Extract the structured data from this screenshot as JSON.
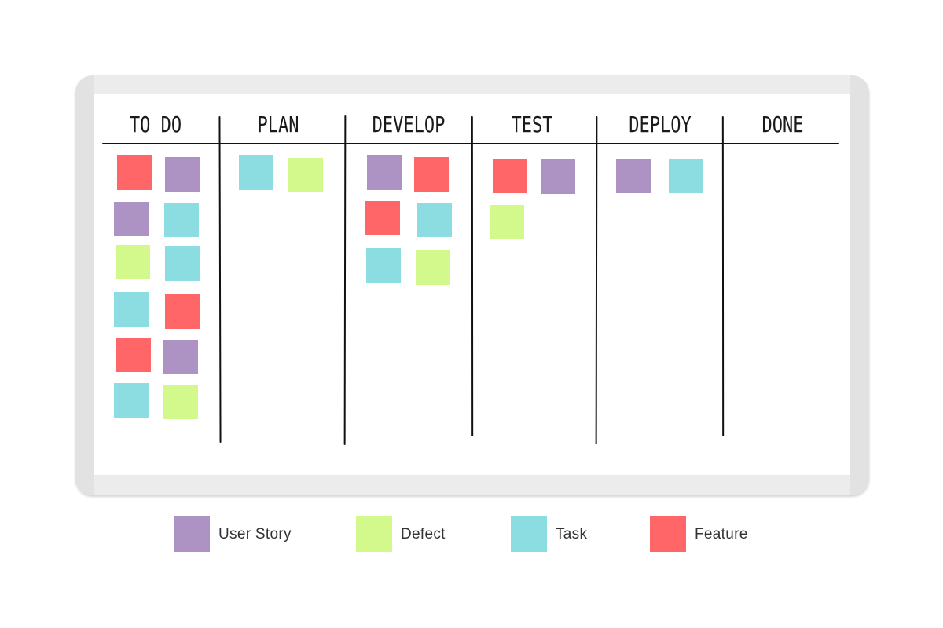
{
  "board": {
    "columns": [
      {
        "id": "todo",
        "label": "TO DO"
      },
      {
        "id": "plan",
        "label": "PLAN"
      },
      {
        "id": "develop",
        "label": "DEVELOP"
      },
      {
        "id": "test",
        "label": "TEST"
      },
      {
        "id": "deploy",
        "label": "DEPLOY"
      },
      {
        "id": "done",
        "label": "DONE"
      }
    ],
    "cards": {
      "todo": [
        "feature",
        "user-story",
        "user-story",
        "task",
        "defect",
        "task",
        "task",
        "feature",
        "feature",
        "user-story",
        "task",
        "defect"
      ],
      "plan": [
        "task",
        "defect"
      ],
      "develop": [
        "user-story",
        "feature",
        "feature",
        "task",
        "task",
        "defect"
      ],
      "test": [
        "feature",
        "user-story",
        "defect"
      ],
      "deploy": [
        "user-story",
        "task"
      ],
      "done": []
    }
  },
  "legend": [
    {
      "type": "user-story",
      "label": "User Story",
      "color": "#ad92c4"
    },
    {
      "type": "defect",
      "label": "Defect",
      "color": "#d3f98d"
    },
    {
      "type": "task",
      "label": "Task",
      "color": "#8cdde2"
    },
    {
      "type": "feature",
      "label": "Feature",
      "color": "#ff6668"
    }
  ]
}
